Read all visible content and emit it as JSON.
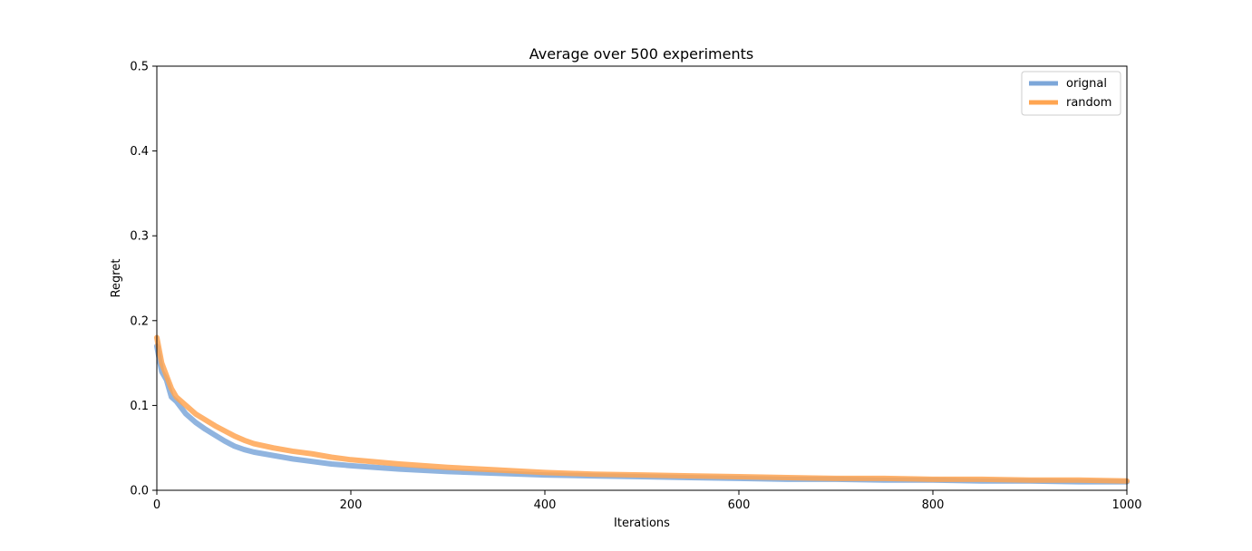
{
  "chart_data": {
    "type": "line",
    "title": "Average over 500 experiments",
    "xlabel": "Iterations",
    "ylabel": "Regret",
    "xlim": [
      0,
      1000
    ],
    "ylim": [
      0,
      0.5
    ],
    "x_ticks": [
      0,
      200,
      400,
      600,
      800,
      1000
    ],
    "y_ticks": [
      0.0,
      0.1,
      0.2,
      0.3,
      0.4,
      0.5
    ],
    "grid": false,
    "legend": "top-right",
    "x": [
      0,
      5,
      10,
      15,
      20,
      30,
      40,
      50,
      60,
      70,
      80,
      90,
      100,
      120,
      140,
      160,
      180,
      200,
      250,
      300,
      350,
      400,
      450,
      500,
      550,
      600,
      650,
      700,
      750,
      800,
      850,
      900,
      950,
      1000
    ],
    "series": [
      {
        "name": "orignal",
        "color": "#7da7d9",
        "values": [
          0.17,
          0.14,
          0.13,
          0.11,
          0.105,
          0.09,
          0.08,
          0.072,
          0.065,
          0.058,
          0.052,
          0.048,
          0.045,
          0.041,
          0.037,
          0.034,
          0.031,
          0.029,
          0.025,
          0.022,
          0.02,
          0.018,
          0.017,
          0.016,
          0.015,
          0.014,
          0.013,
          0.013,
          0.012,
          0.012,
          0.011,
          0.011,
          0.01,
          0.01
        ]
      },
      {
        "name": "random",
        "color": "#ffa552",
        "values": [
          0.18,
          0.15,
          0.135,
          0.12,
          0.11,
          0.1,
          0.09,
          0.083,
          0.076,
          0.07,
          0.064,
          0.059,
          0.055,
          0.05,
          0.046,
          0.043,
          0.039,
          0.036,
          0.031,
          0.027,
          0.024,
          0.021,
          0.019,
          0.018,
          0.017,
          0.016,
          0.015,
          0.014,
          0.014,
          0.013,
          0.013,
          0.012,
          0.012,
          0.011
        ]
      }
    ]
  }
}
